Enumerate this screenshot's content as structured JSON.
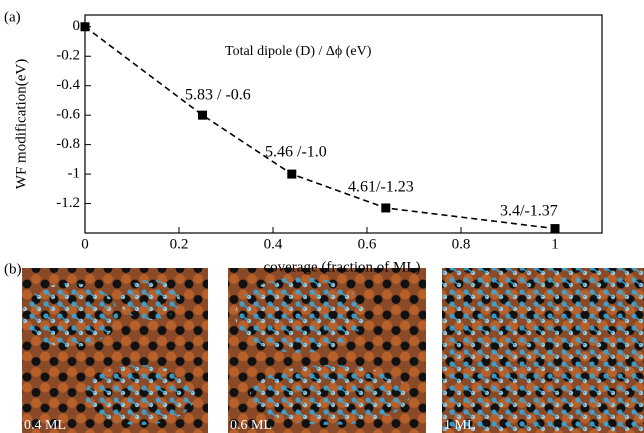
{
  "chart_data": {
    "type": "line",
    "panel_label": "(a)",
    "x_label": "coverage (fraction of ML)",
    "y_label": "WF modification(eV)",
    "x": [
      0,
      0.25,
      0.44,
      0.64,
      1
    ],
    "series": [
      {
        "name": null,
        "color": "#000000",
        "values": [
          0,
          -0.6,
          -1.0,
          -1.23,
          -1.37
        ]
      }
    ],
    "annotations": [
      "Total dipole (D) / Δϕ (eV)",
      "5.83 / -0.6",
      "5.46 /-1.0",
      "4.61/-1.23",
      "3.4/-1.37"
    ],
    "xlim": [
      0,
      1.1
    ],
    "ylim": [
      -1.4,
      0.08
    ],
    "xticks": [
      0,
      0.2,
      0.4,
      0.6,
      0.8,
      1
    ],
    "yticks": [
      0,
      -0.2,
      -0.4,
      -0.6,
      -0.8,
      -1,
      -1.2
    ]
  },
  "images": {
    "panel_label": "(b)",
    "labels": [
      "0.4 ML",
      "0.6 ML",
      "1 ML"
    ]
  }
}
